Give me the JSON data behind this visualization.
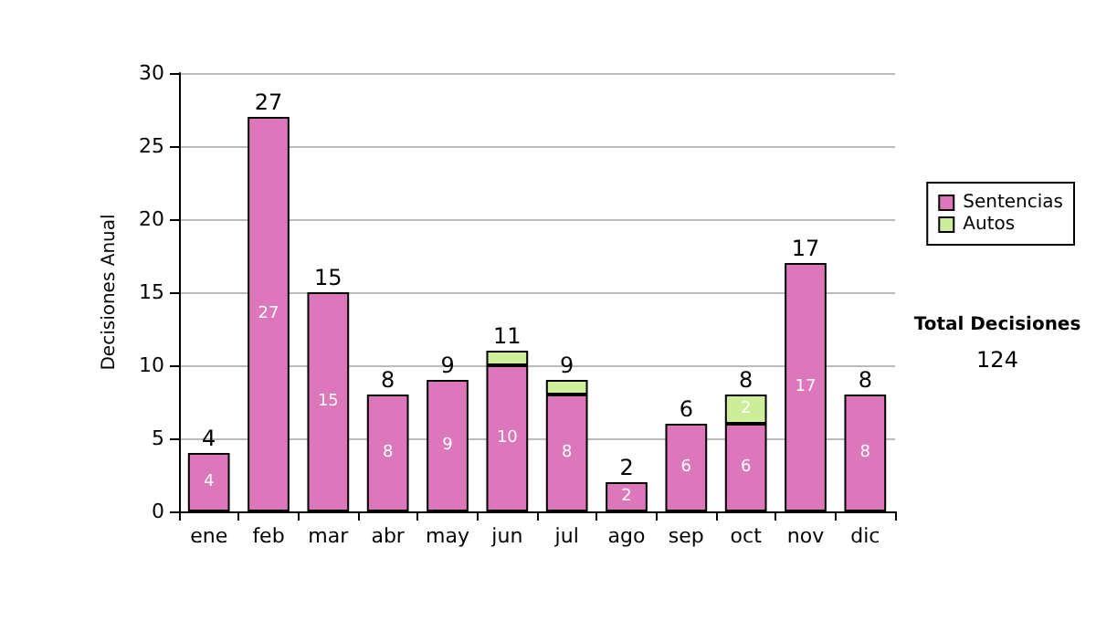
{
  "chart_data": {
    "type": "bar",
    "stacked": true,
    "ylabel": "Decisiones Anual",
    "categories": [
      "ene",
      "feb",
      "mar",
      "abr",
      "may",
      "jun",
      "jul",
      "ago",
      "sep",
      "oct",
      "nov",
      "dic"
    ],
    "series": [
      {
        "name": "Sentencias",
        "color": "#dd77bb",
        "values": [
          4,
          27,
          15,
          8,
          9,
          10,
          8,
          2,
          6,
          6,
          17,
          8
        ],
        "value_labels": [
          "4",
          "27",
          "15",
          "8",
          "9",
          "10",
          "8",
          "2",
          "6",
          "6",
          "17",
          "8"
        ]
      },
      {
        "name": "Autos",
        "color": "#ccee99",
        "values": [
          null,
          null,
          null,
          null,
          null,
          1,
          1,
          null,
          null,
          2,
          null,
          null
        ],
        "value_labels": [
          null,
          null,
          null,
          null,
          null,
          null,
          null,
          null,
          null,
          "2",
          null,
          null
        ]
      }
    ],
    "totals": [
      "4",
      "27",
      "15",
      "8",
      "9",
      "11",
      "9",
      "2",
      "6",
      "8",
      "17",
      "8"
    ],
    "ylim": [
      0,
      30
    ],
    "yticks": [
      0,
      5,
      10,
      15,
      20,
      25,
      30
    ],
    "grid": "y",
    "legend": "right",
    "annotations": [
      "Total Decisiones",
      "124"
    ]
  }
}
